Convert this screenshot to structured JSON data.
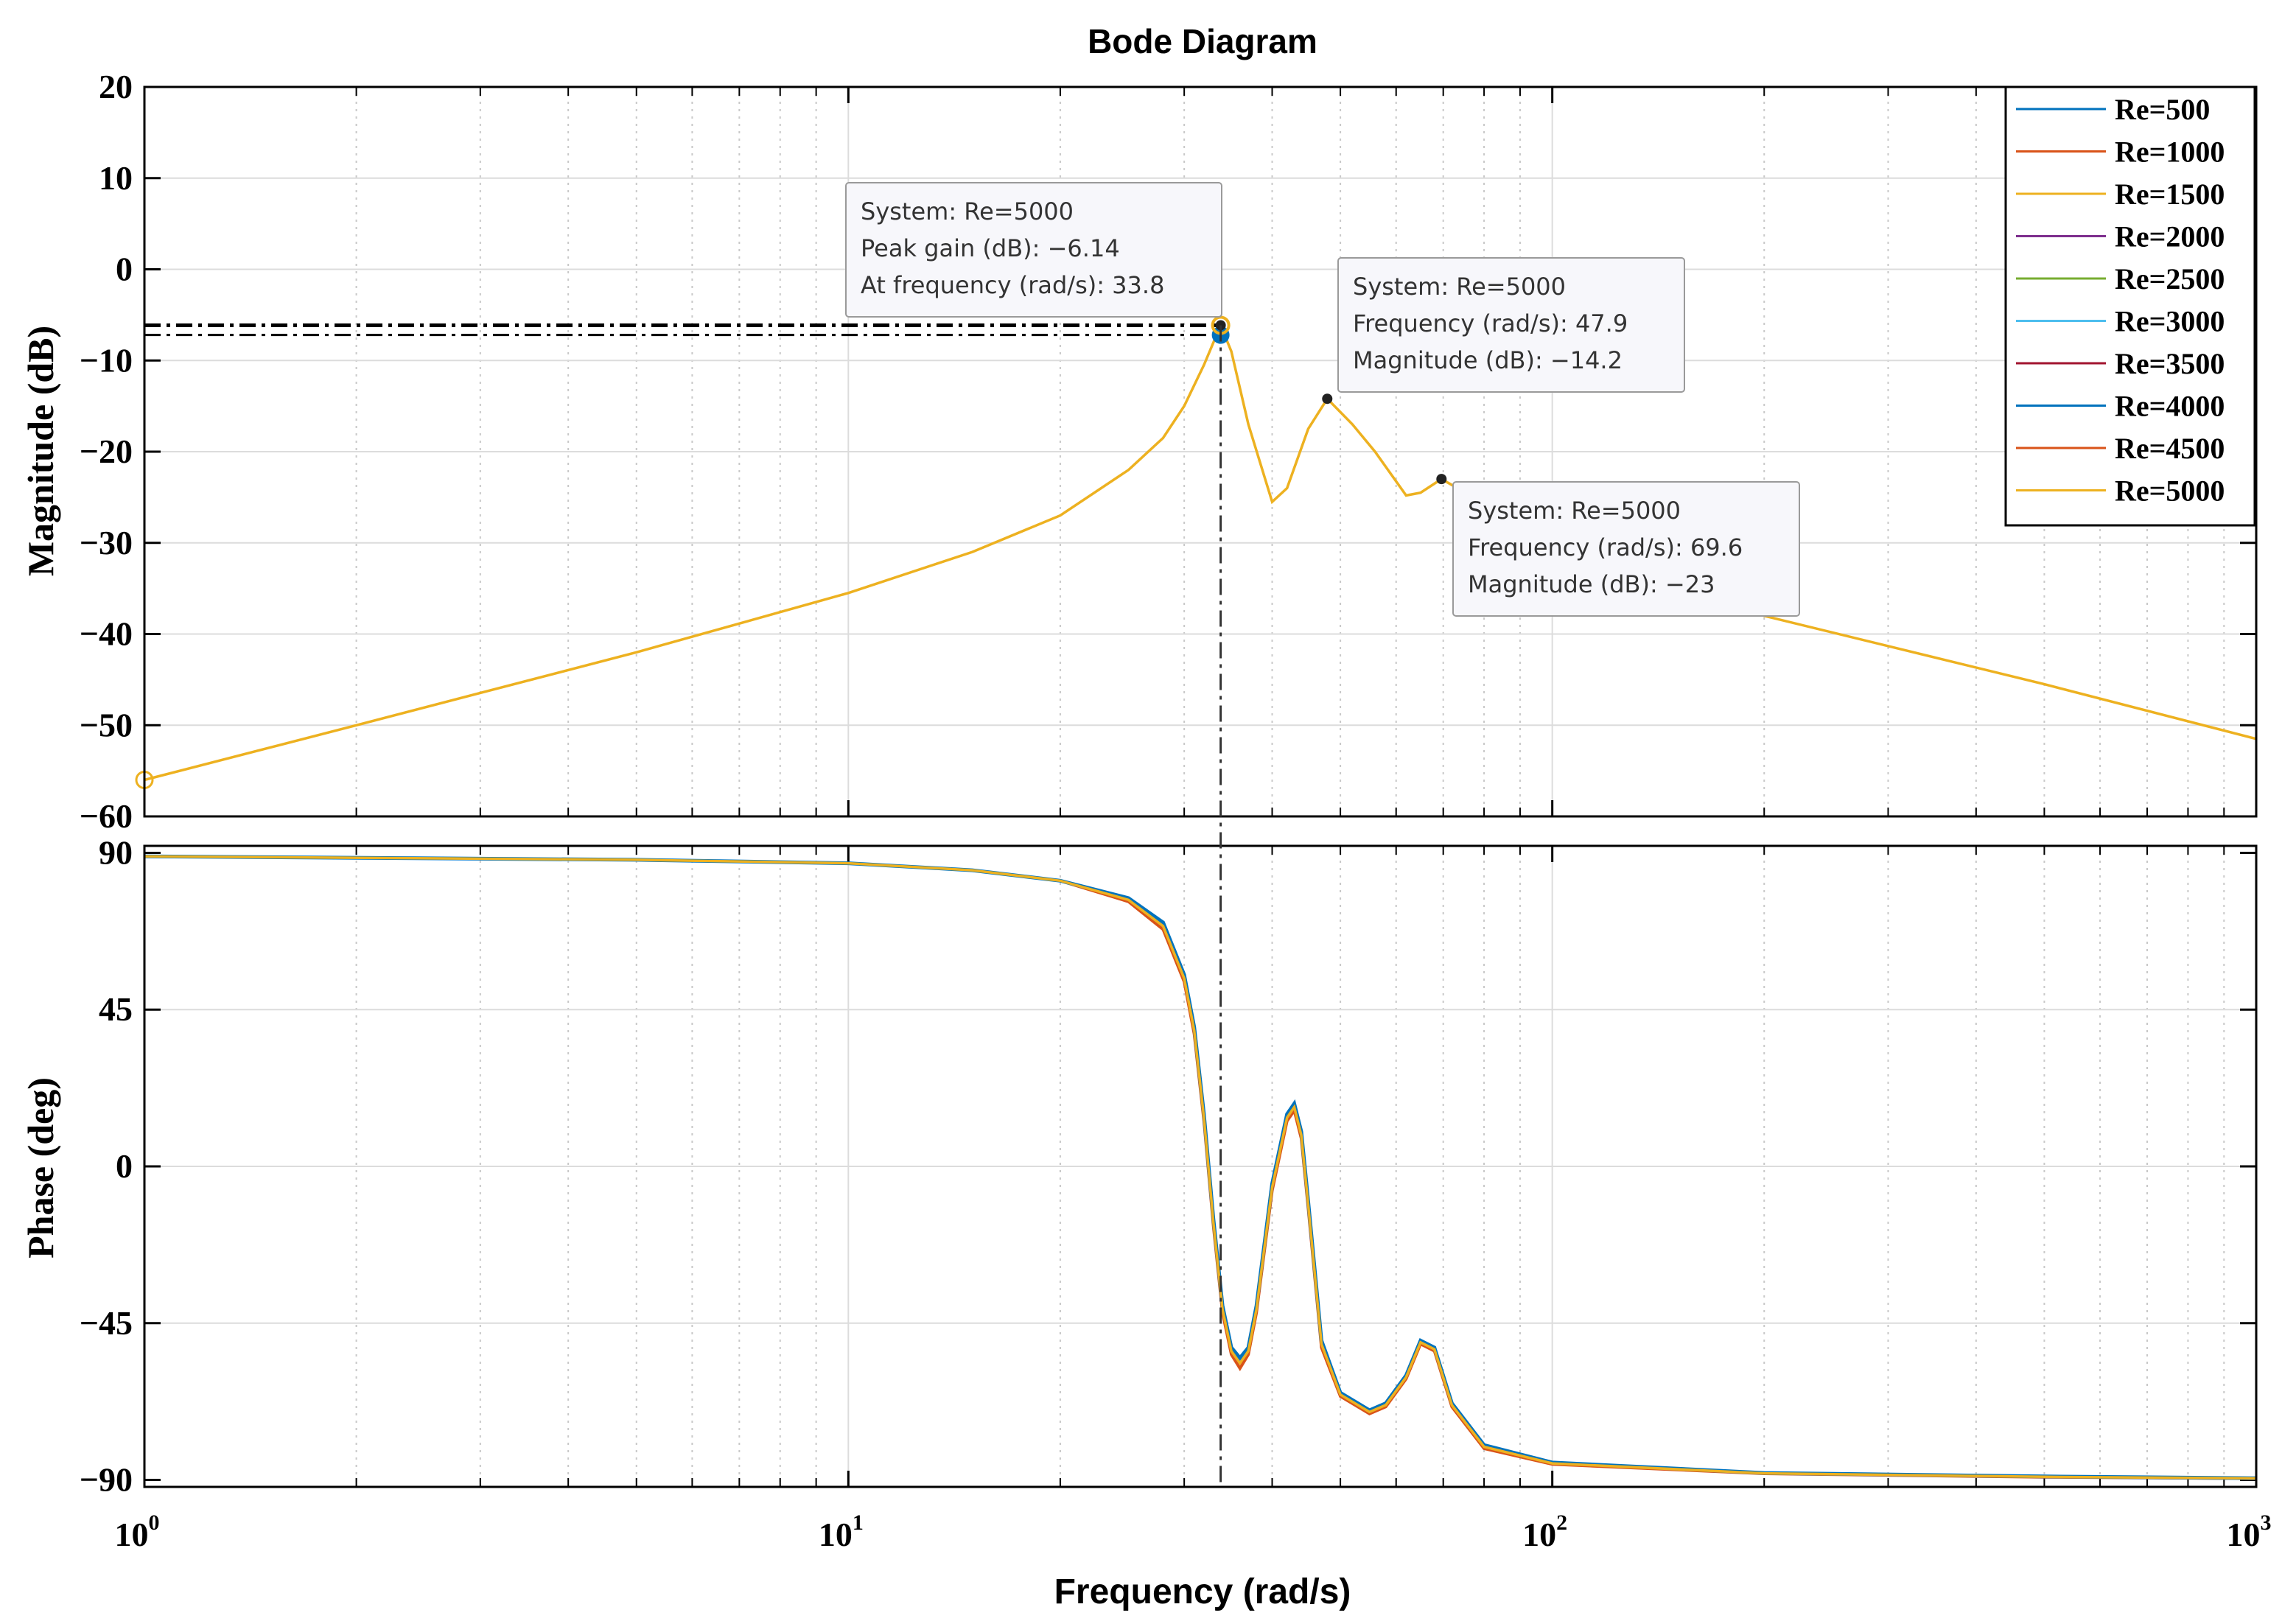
{
  "chart_data": {
    "type": "line",
    "title": "Bode Diagram",
    "xlabel": "Frequency  (rad/s)",
    "xscale": "log",
    "xlim": [
      1,
      1000
    ],
    "x_ticks": [
      {
        "base": "10",
        "exp": "0"
      },
      {
        "base": "10",
        "exp": "1"
      },
      {
        "base": "10",
        "exp": "2"
      },
      {
        "base": "10",
        "exp": "3"
      }
    ],
    "grid": true,
    "legend_position": "top-right",
    "legend": [
      "Re=500",
      "Re=1000",
      "Re=1500",
      "Re=2000",
      "Re=2500",
      "Re=3000",
      "Re=3500",
      "Re=4000",
      "Re=4500",
      "Re=5000"
    ],
    "series_colors": [
      "#0072BD",
      "#D95319",
      "#EDB120",
      "#7E2F8E",
      "#77AC30",
      "#4DBEEE",
      "#A2142F",
      "#0072BD",
      "#D95319",
      "#EDB120"
    ],
    "magnitude": {
      "ylabel": "Magnitude (dB)",
      "ylim": [
        -60,
        20
      ],
      "yticks": [
        "20",
        "10",
        "0",
        "−10",
        "−20",
        "−30",
        "−40",
        "−50",
        "−60"
      ],
      "x": [
        1,
        2,
        5,
        10,
        15,
        20,
        25,
        28,
        30,
        32,
        33.8,
        35,
        37,
        40,
        42,
        45,
        47.9,
        52,
        56,
        62,
        65,
        69.6,
        100,
        200,
        500,
        1000
      ],
      "y": [
        -56,
        -50,
        -42,
        -35.5,
        -31,
        -27,
        -22,
        -18.5,
        -15,
        -10.5,
        -6.14,
        -9,
        -17,
        -25.5,
        -24,
        -17.5,
        -14.2,
        -17,
        -20,
        -24.8,
        -24.5,
        -23,
        -30,
        -38,
        -45.5,
        -51.5
      ],
      "peak_markers": [
        {
          "x": 33.8,
          "y": -6.14
        },
        {
          "x": 33.8,
          "y": -7.2
        }
      ],
      "origin_marker": {
        "x": 1,
        "y": -56
      }
    },
    "phase": {
      "ylabel": "Phase (deg)",
      "ylim": [
        -92,
        92
      ],
      "yticks": [
        {
          "label": "90",
          "value": 90
        },
        {
          "label": "45",
          "value": 45
        },
        {
          "label": "0",
          "value": 0
        },
        {
          "label": "−45",
          "value": -45
        },
        {
          "label": "−90",
          "value": -90
        }
      ],
      "x": [
        1,
        5,
        10,
        15,
        20,
        25,
        28,
        30,
        31,
        32,
        33,
        34,
        35,
        36,
        37,
        38,
        40,
        42,
        43,
        44,
        45,
        47,
        50,
        55,
        58,
        62,
        65,
        68,
        72,
        80,
        100,
        200,
        500,
        1000
      ],
      "y": [
        89,
        88,
        87,
        85,
        82,
        77,
        70,
        55,
        40,
        15,
        -15,
        -40,
        -52,
        -55,
        -52,
        -40,
        -5,
        15,
        18,
        10,
        -10,
        -50,
        -65,
        -70,
        -68,
        -60,
        -50,
        -52,
        -68,
        -80,
        -85,
        -88,
        -89,
        -89.5
      ],
      "alt_y": [
        89,
        88,
        87,
        85,
        82,
        76,
        68,
        53,
        38,
        13,
        -17,
        -42,
        -54,
        -58,
        -54,
        -42,
        -7,
        13,
        16,
        8,
        -12,
        -52,
        -66,
        -71,
        -69,
        -61,
        -51,
        -53,
        -69,
        -81,
        -85.5,
        -88.2,
        -89.2,
        -89.6
      ]
    },
    "datatips": [
      {
        "lines": [
          "System: Re=5000",
          "Peak gain (dB): −6.14",
          "At frequency (rad/s): 33.8"
        ],
        "x": 33.8,
        "y": -6.14
      },
      {
        "lines": [
          "System: Re=5000",
          "Frequency (rad/s): 47.9",
          "Magnitude (dB): −14.2"
        ],
        "x": 47.9,
        "y": -14.2
      },
      {
        "lines": [
          "System: Re=5000",
          "Frequency (rad/s): 69.6",
          "Magnitude (dB): −23"
        ],
        "x": 69.6,
        "y": -23
      }
    ]
  }
}
